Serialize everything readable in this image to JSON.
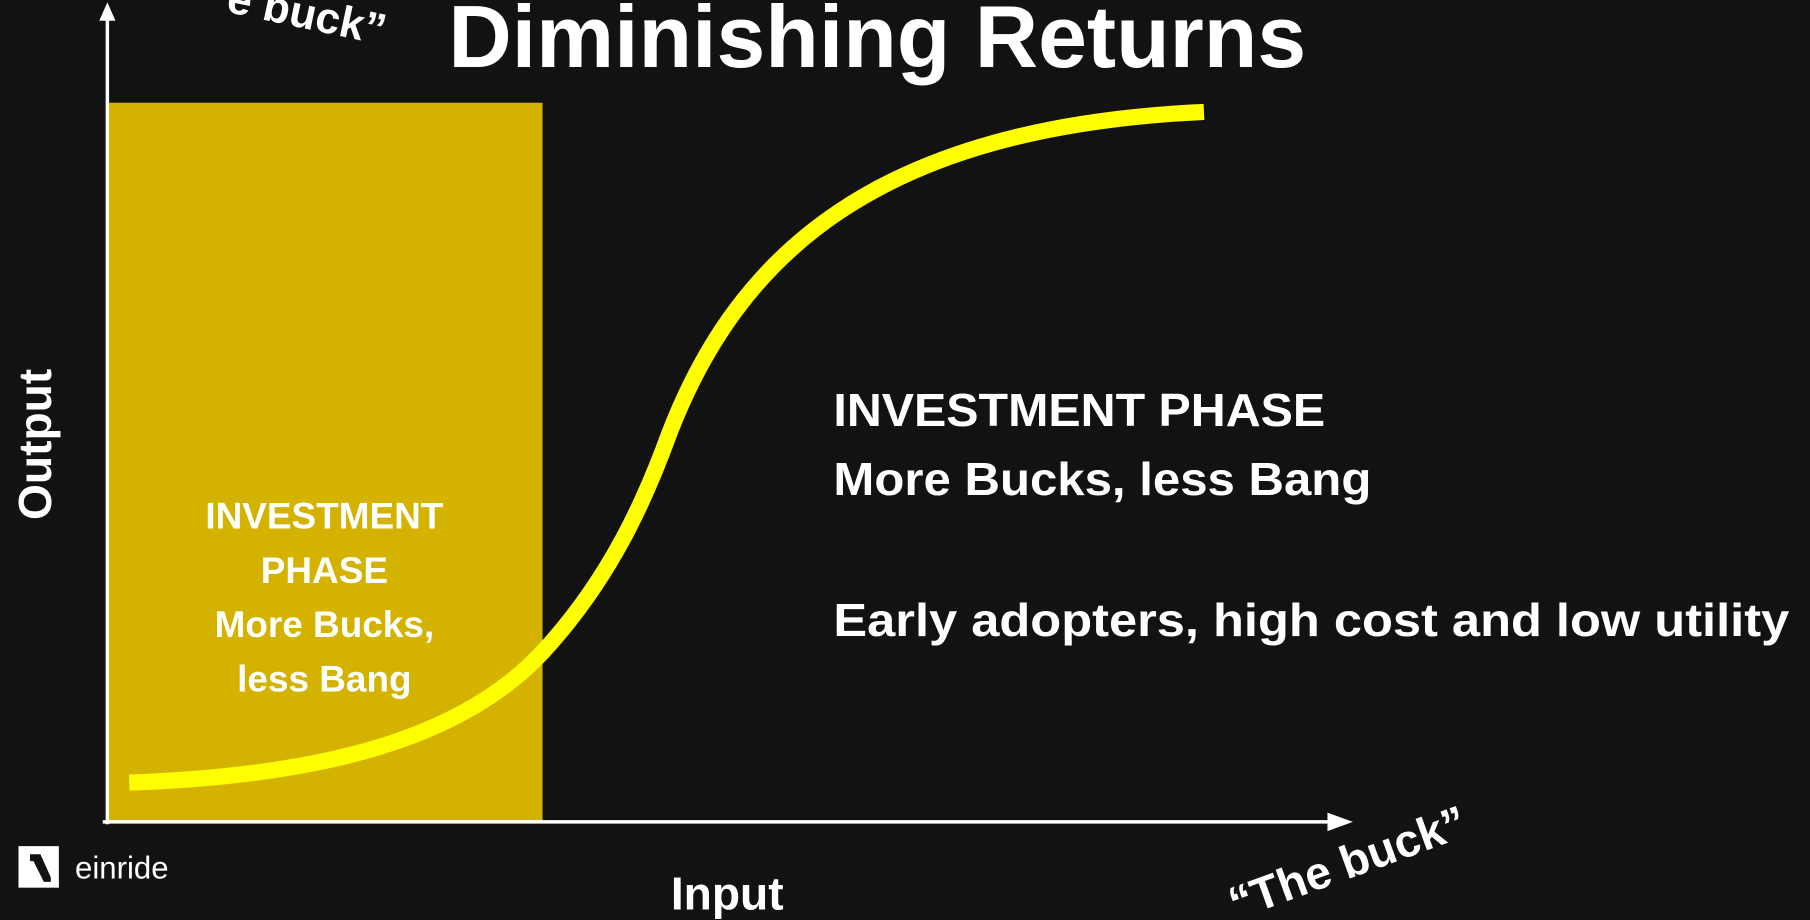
{
  "title": "Diminishing Returns",
  "top_label": "e buck”",
  "axes": {
    "y_label": "Output",
    "x_label": "Input",
    "x_end_label": "“The buck”"
  },
  "box": {
    "lines": [
      "INVESTMENT",
      "PHASE",
      "More Bucks,",
      "less Bang"
    ]
  },
  "panel": {
    "heading": "INVESTMENT PHASE",
    "subheading": "More Bucks, less Bang",
    "note": "Early adopters, high cost and low utility"
  },
  "logo": {
    "text": "einride"
  }
}
